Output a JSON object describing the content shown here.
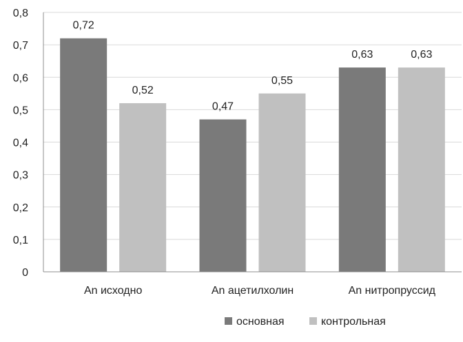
{
  "chart_data": {
    "type": "bar",
    "title": "",
    "xlabel": "",
    "ylabel": "",
    "categories": [
      "An исходно",
      "An ацетилхолин",
      "An нитропруссид"
    ],
    "series": [
      {
        "name": "основная",
        "values": [
          0.72,
          0.47,
          0.63
        ],
        "color": "#7a7a7a"
      },
      {
        "name": "контрольная",
        "values": [
          0.52,
          0.55,
          0.63
        ],
        "color": "#c0c0c0"
      }
    ],
    "ylim": [
      0,
      0.8
    ],
    "y_ticks": [
      0,
      0.1,
      0.2,
      0.3,
      0.4,
      0.5,
      0.6,
      0.7,
      0.8
    ],
    "y_tick_labels": [
      "0",
      "0,1",
      "0,2",
      "0,3",
      "0,4",
      "0,5",
      "0,6",
      "0,7",
      "0,8"
    ],
    "data_labels": [
      [
        "0,72",
        "0,47",
        "0,63"
      ],
      [
        "0,52",
        "0,55",
        "0,63"
      ]
    ],
    "grid": true,
    "legend_position": "bottom-right",
    "grid_color": "#d9d9d9",
    "axis_color": "#8c8c8c"
  }
}
